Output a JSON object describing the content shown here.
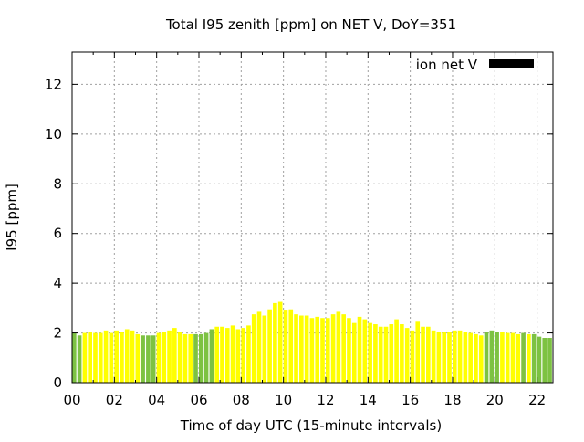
{
  "chart_data": {
    "type": "bar",
    "title": "Total I95 zenith [ppm] on NET V, DoY=351",
    "xlabel": "Time of day UTC (15-minute intervals)",
    "ylabel": "I95 [ppm]",
    "ylim": [
      0,
      13.3
    ],
    "xlim": [
      0,
      22.75
    ],
    "grid": true,
    "legend": {
      "position": "top-right",
      "label": "ion net V",
      "color": "#000000"
    },
    "y_ticks": [
      "0",
      "2",
      "4",
      "6",
      "8",
      "10",
      "12"
    ],
    "x_ticks": [
      "00",
      "02",
      "04",
      "06",
      "08",
      "10",
      "12",
      "14",
      "16",
      "18",
      "20",
      "22"
    ],
    "bar_width_hours": 0.2,
    "colors": {
      "green": "#7dc242",
      "yellow": "#ffff00"
    },
    "series": [
      {
        "x": [
          0.0,
          0.25,
          0.5,
          0.75,
          1.0,
          1.25,
          1.5,
          1.75,
          2.0,
          2.25,
          2.5,
          2.75,
          3.0,
          3.25,
          3.5,
          3.75,
          4.0,
          4.25,
          4.5,
          4.75,
          5.0,
          5.25,
          5.5,
          5.75,
          6.0,
          6.25,
          6.5,
          6.75,
          7.0,
          7.25,
          7.5,
          7.75,
          8.0,
          8.25,
          8.5,
          8.75,
          9.0,
          9.25,
          9.5,
          9.75,
          10.0,
          10.25,
          10.5,
          10.75,
          11.0,
          11.25,
          11.5,
          11.75,
          12.0,
          12.25,
          12.5,
          12.75,
          13.0,
          13.25,
          13.5,
          13.75,
          14.0,
          14.25,
          14.5,
          14.75,
          15.0,
          15.25,
          15.5,
          15.75,
          16.0,
          16.25,
          16.5,
          16.75,
          17.0,
          17.25,
          17.5,
          17.75,
          18.0,
          18.25,
          18.5,
          18.75,
          19.0,
          19.25,
          19.5,
          19.75,
          20.0,
          20.25,
          20.5,
          20.75,
          21.0,
          21.25,
          21.5,
          21.75,
          22.0,
          22.25,
          22.5
        ],
        "values": [
          2.0,
          1.9,
          2.0,
          2.05,
          2.0,
          2.0,
          2.1,
          2.0,
          2.1,
          2.05,
          2.15,
          2.1,
          1.95,
          1.9,
          1.9,
          1.9,
          2.0,
          2.05,
          2.1,
          2.2,
          2.05,
          1.95,
          1.95,
          1.95,
          1.95,
          2.0,
          2.15,
          2.25,
          2.25,
          2.2,
          2.3,
          2.15,
          2.2,
          2.3,
          2.75,
          2.85,
          2.7,
          2.95,
          3.2,
          3.25,
          2.9,
          2.95,
          2.75,
          2.7,
          2.7,
          2.6,
          2.65,
          2.6,
          2.6,
          2.75,
          2.85,
          2.75,
          2.6,
          2.4,
          2.65,
          2.55,
          2.4,
          2.35,
          2.25,
          2.25,
          2.35,
          2.55,
          2.35,
          2.2,
          2.1,
          2.45,
          2.25,
          2.25,
          2.1,
          2.05,
          2.05,
          2.05,
          2.1,
          2.1,
          2.05,
          2.0,
          1.95,
          1.9,
          2.05,
          2.1,
          2.05,
          2.05,
          2.0,
          2.0,
          1.95,
          2.0,
          1.95,
          1.95,
          1.85,
          1.8,
          1.8
        ],
        "colors": [
          "green",
          "green",
          "yellow",
          "yellow",
          "yellow",
          "yellow",
          "yellow",
          "yellow",
          "yellow",
          "yellow",
          "yellow",
          "yellow",
          "yellow",
          "green",
          "green",
          "green",
          "yellow",
          "yellow",
          "yellow",
          "yellow",
          "yellow",
          "yellow",
          "yellow",
          "green",
          "green",
          "green",
          "green",
          "yellow",
          "yellow",
          "yellow",
          "yellow",
          "yellow",
          "yellow",
          "yellow",
          "yellow",
          "yellow",
          "yellow",
          "yellow",
          "yellow",
          "yellow",
          "yellow",
          "yellow",
          "yellow",
          "yellow",
          "yellow",
          "yellow",
          "yellow",
          "yellow",
          "yellow",
          "yellow",
          "yellow",
          "yellow",
          "yellow",
          "yellow",
          "yellow",
          "yellow",
          "yellow",
          "yellow",
          "yellow",
          "yellow",
          "yellow",
          "yellow",
          "yellow",
          "yellow",
          "yellow",
          "yellow",
          "yellow",
          "yellow",
          "yellow",
          "yellow",
          "yellow",
          "yellow",
          "yellow",
          "yellow",
          "yellow",
          "yellow",
          "yellow",
          "yellow",
          "green",
          "green",
          "green",
          "yellow",
          "yellow",
          "yellow",
          "yellow",
          "green",
          "yellow",
          "green",
          "green",
          "green",
          "green"
        ]
      }
    ]
  }
}
